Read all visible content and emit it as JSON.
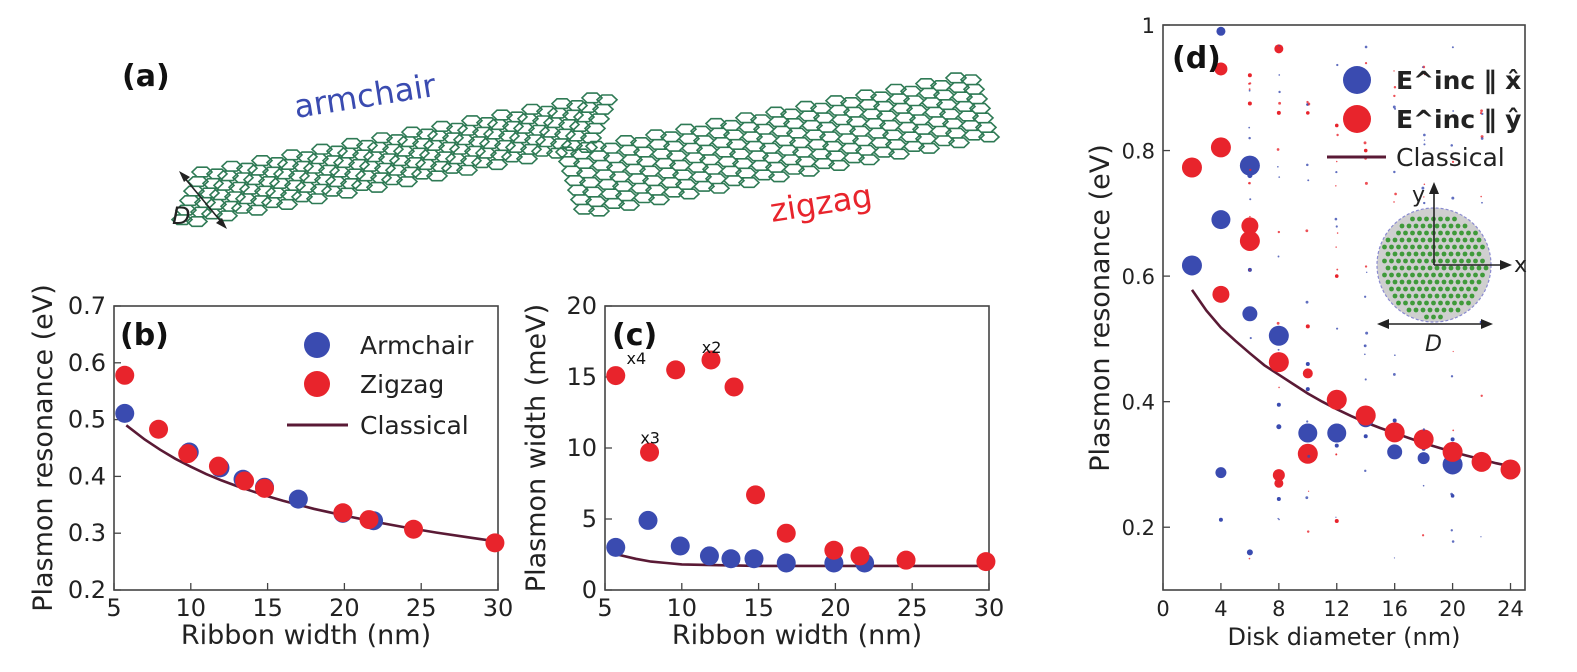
{
  "colors": {
    "armchair": "#3a4bb0",
    "zigzag": "#e8242c",
    "classical": "#5a1a35",
    "lattice": "#2f7a55",
    "disk_fill": "#cfcfcf"
  },
  "panel_a": {
    "label": "(a)",
    "armchair_label": "armchair",
    "zigzag_label": "zigzag",
    "width_symbol": "D"
  },
  "chart_data": [
    {
      "id": "b",
      "panel_label": "(b)",
      "type": "scatter",
      "xlabel": "Ribbon width (nm)",
      "ylabel": "Plasmon resonance (eV)",
      "xlim": [
        5,
        30
      ],
      "ylim": [
        0.2,
        0.7
      ],
      "xticks": [
        5,
        10,
        15,
        20,
        25,
        30
      ],
      "yticks": [
        0.2,
        0.3,
        0.4,
        0.5,
        0.6,
        0.7
      ],
      "ytick_labels": [
        "0.2",
        "0.3",
        "0.4",
        "0.5",
        "0.6",
        "0.7"
      ],
      "legend": [
        "Armchair",
        "Zigzag",
        "Classical"
      ],
      "legend_position": "top-right",
      "series": [
        {
          "name": "Armchair",
          "marker": "circle",
          "color": "#3a4bb0",
          "x": [
            5.7,
            9.9,
            11.9,
            13.4,
            14.8,
            17.0,
            19.9,
            21.9
          ],
          "y": [
            0.511,
            0.443,
            0.415,
            0.395,
            0.381,
            0.36,
            0.335,
            0.322
          ]
        },
        {
          "name": "Zigzag",
          "marker": "circle",
          "color": "#e8242c",
          "x": [
            5.7,
            7.9,
            9.8,
            11.8,
            13.5,
            14.8,
            19.9,
            21.6,
            24.5,
            29.8
          ],
          "y": [
            0.578,
            0.483,
            0.44,
            0.418,
            0.392,
            0.379,
            0.336,
            0.324,
            0.307,
            0.283
          ]
        },
        {
          "name": "Classical",
          "marker": "line",
          "color": "#5a1a35",
          "x": [
            5.8,
            7,
            8,
            9,
            10,
            11,
            12,
            13,
            14,
            15,
            16,
            17,
            18,
            19,
            20,
            22,
            24,
            26,
            28,
            30
          ],
          "y": [
            0.49,
            0.465,
            0.447,
            0.431,
            0.417,
            0.404,
            0.393,
            0.383,
            0.374,
            0.365,
            0.357,
            0.35,
            0.343,
            0.337,
            0.331,
            0.32,
            0.31,
            0.301,
            0.293,
            0.285
          ]
        }
      ]
    },
    {
      "id": "c",
      "panel_label": "(c)",
      "type": "scatter",
      "xlabel": "Ribbon width (nm)",
      "ylabel": "Plasmon width (meV)",
      "xlim": [
        5,
        30
      ],
      "ylim": [
        0,
        20
      ],
      "xticks": [
        5,
        10,
        15,
        20,
        25,
        30
      ],
      "yticks": [
        0,
        5,
        10,
        15,
        20
      ],
      "ytick_labels": [
        "0",
        "5",
        "10",
        "15",
        "20"
      ],
      "annotations": [
        {
          "text": "x4",
          "x": 6.4,
          "y": 15.9
        },
        {
          "text": "x3",
          "x": 7.3,
          "y": 10.3
        },
        {
          "text": "x2",
          "x": 11.3,
          "y": 16.7
        }
      ],
      "series": [
        {
          "name": "Armchair",
          "marker": "circle",
          "color": "#3a4bb0",
          "x": [
            5.7,
            7.8,
            9.9,
            11.8,
            13.2,
            14.7,
            16.8,
            19.9,
            21.9
          ],
          "y": [
            3.0,
            4.9,
            3.1,
            2.4,
            2.2,
            2.2,
            1.9,
            1.9,
            1.9
          ]
        },
        {
          "name": "Zigzag",
          "marker": "circle",
          "color": "#e8242c",
          "x": [
            5.7,
            7.9,
            9.6,
            11.9,
            13.4,
            14.8,
            16.8,
            19.9,
            21.6,
            24.6,
            29.8
          ],
          "y": [
            15.1,
            9.7,
            15.5,
            16.2,
            14.3,
            6.7,
            4.0,
            2.8,
            2.4,
            2.1,
            2.0
          ]
        },
        {
          "name": "Classical",
          "marker": "line",
          "color": "#5a1a35",
          "x": [
            5.8,
            7,
            8,
            9,
            10,
            12,
            15,
            20,
            25,
            30
          ],
          "y": [
            2.5,
            2.2,
            2.0,
            1.9,
            1.8,
            1.75,
            1.7,
            1.7,
            1.7,
            1.7
          ]
        }
      ]
    },
    {
      "id": "d",
      "panel_label": "(d)",
      "type": "scatter",
      "xlabel": "Disk diameter (nm)",
      "ylabel": "Plasmon resonance (eV)",
      "xlim": [
        0,
        25
      ],
      "ylim": [
        0.1,
        1.0
      ],
      "xticks": [
        0,
        4,
        8,
        12,
        16,
        20,
        24
      ],
      "yticks": [
        0.2,
        0.4,
        0.6,
        0.8,
        1.0
      ],
      "ytick_labels": [
        "0.2",
        "0.4",
        "0.6",
        "0.8",
        "1"
      ],
      "legend": [
        "E^inc ∥ x̂",
        "E^inc ∥ ŷ",
        "Classical"
      ],
      "legend_position": "top-right",
      "inset": {
        "y_label": "y",
        "x_label": "x",
        "d_label": "D"
      },
      "series": [
        {
          "name": "E^inc ∥ x̂",
          "marker": "circle",
          "color": "#3a4bb0",
          "points": [
            [
              2,
              0.617,
              1.0
            ],
            [
              4,
              0.69,
              0.95
            ],
            [
              6,
              0.776,
              1.0
            ],
            [
              6,
              0.54,
              0.75
            ],
            [
              8,
              0.505,
              1.0
            ],
            [
              10,
              0.35,
              0.95
            ],
            [
              12,
              0.35,
              0.95
            ],
            [
              14,
              0.372,
              0.8
            ],
            [
              16,
              0.32,
              0.75
            ],
            [
              18,
              0.31,
              0.6
            ],
            [
              20,
              0.3,
              1.0
            ],
            [
              4,
              0.287,
              0.55
            ],
            [
              4,
              0.99,
              0.45
            ],
            [
              4,
              0.212,
              0.2
            ],
            [
              6,
              0.16,
              0.3
            ],
            [
              6,
              0.645,
              0.25
            ],
            [
              6,
              0.61,
              0.2
            ],
            [
              6,
              0.76,
              0.25
            ],
            [
              8,
              0.36,
              0.25
            ],
            [
              8,
              0.245,
              0.2
            ],
            [
              8,
              0.395,
              0.2
            ],
            [
              10,
              0.42,
              0.2
            ],
            [
              10,
              0.46,
              0.2
            ],
            [
              12,
              0.33,
              0.2
            ],
            [
              14,
              0.345,
              0.2
            ],
            [
              16,
              0.37,
              0.2
            ],
            [
              18,
              0.325,
              0.2
            ],
            [
              20,
              0.25,
              0.18
            ],
            [
              20,
              0.34,
              0.2
            ],
            [
              22,
              0.31,
              0.18
            ],
            [
              24,
              0.285,
              0.18
            ]
          ]
        },
        {
          "name": "E^inc ∥ ŷ",
          "marker": "circle",
          "color": "#e8242c",
          "points": [
            [
              2,
              0.773,
              1.0
            ],
            [
              4,
              0.805,
              1.0
            ],
            [
              4,
              0.93,
              0.65
            ],
            [
              4,
              0.571,
              0.85
            ],
            [
              6,
              0.68,
              0.85
            ],
            [
              6,
              0.656,
              1.0
            ],
            [
              8,
              0.463,
              1.0
            ],
            [
              8,
              0.962,
              0.45
            ],
            [
              8,
              0.283,
              0.6
            ],
            [
              8,
              0.27,
              0.45
            ],
            [
              10,
              0.317,
              1.0
            ],
            [
              10,
              0.445,
              0.5
            ],
            [
              12,
              0.403,
              1.0
            ],
            [
              12,
              0.21,
              0.2
            ],
            [
              14,
              0.378,
              1.0
            ],
            [
              16,
              0.351,
              1.0
            ],
            [
              18,
              0.34,
              1.0
            ],
            [
              20,
              0.32,
              1.0
            ],
            [
              22,
              0.304,
              1.0
            ],
            [
              24,
              0.292,
              1.0
            ],
            [
              6,
              0.875,
              0.2
            ],
            [
              6,
              0.92,
              0.2
            ],
            [
              8,
              0.86,
              0.2
            ],
            [
              10,
              0.86,
              0.18
            ],
            [
              12,
              0.84,
              0.18
            ],
            [
              14,
              0.8,
              0.18
            ],
            [
              10,
              0.52,
              0.2
            ],
            [
              12,
              0.6,
              0.18
            ]
          ]
        },
        {
          "name": "Classical",
          "marker": "line",
          "color": "#5a1a35",
          "x": [
            2,
            3,
            4,
            5,
            6,
            7,
            8,
            9,
            10,
            11,
            12,
            13,
            14,
            15,
            16,
            17,
            18,
            19,
            20,
            21,
            22,
            23,
            24
          ],
          "y": [
            0.578,
            0.545,
            0.518,
            0.497,
            0.477,
            0.458,
            0.443,
            0.428,
            0.413,
            0.4,
            0.388,
            0.377,
            0.367,
            0.358,
            0.35,
            0.342,
            0.334,
            0.327,
            0.32,
            0.314,
            0.308,
            0.302,
            0.297
          ]
        }
      ]
    }
  ]
}
